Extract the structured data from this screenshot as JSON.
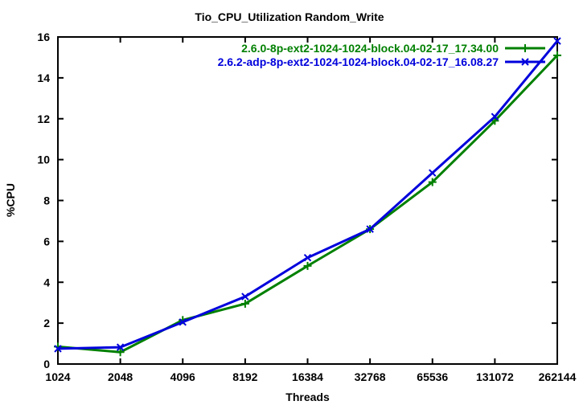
{
  "title": "Tio_CPU_Utilization Random_Write",
  "colors": {
    "background": "#ffffff",
    "axis": "#000000",
    "series_green": "#008000",
    "series_blue": "#0000dc"
  },
  "chart_data": {
    "type": "line",
    "title": "Tio_CPU_Utilization Random_Write",
    "xlabel": "Threads",
    "ylabel": "%CPU",
    "x_scale": "log2",
    "x": [
      1024,
      2048,
      4096,
      8192,
      16384,
      32768,
      65536,
      131072,
      262144
    ],
    "ylim": [
      0,
      16
    ],
    "yticks": [
      0,
      2,
      4,
      6,
      8,
      10,
      12,
      14,
      16
    ],
    "grid": false,
    "legend_position": "top-right-inside",
    "series": [
      {
        "name": "2.6.0-8p-ext2-1024-1024-block.04-02-17_17.34.00",
        "color": "#008000",
        "marker": "plus",
        "values": [
          0.85,
          0.58,
          2.15,
          2.95,
          4.8,
          6.6,
          8.9,
          11.9,
          15.1
        ]
      },
      {
        "name": "2.6.2-adp-8p-ext2-1024-1024-block.04-02-17_16.08.27",
        "color": "#0000dc",
        "marker": "x",
        "values": [
          0.75,
          0.82,
          2.05,
          3.3,
          5.2,
          6.6,
          9.35,
          12.1,
          15.8
        ]
      }
    ]
  }
}
